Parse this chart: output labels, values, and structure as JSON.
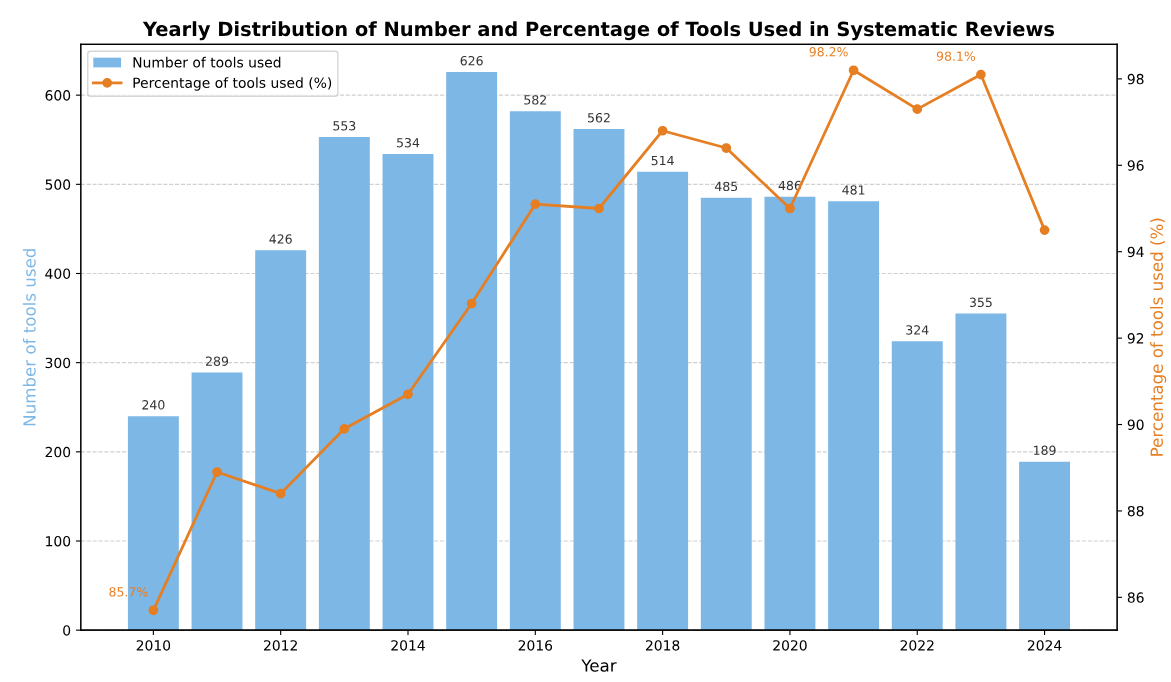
{
  "chart_data": {
    "type": "bar",
    "title": "Yearly Distribution of Number and Percentage of Tools Used in Systematic Reviews",
    "x": [
      2010,
      2011,
      2012,
      2013,
      2014,
      2015,
      2016,
      2017,
      2018,
      2019,
      2020,
      2021,
      2022,
      2023,
      2024
    ],
    "xlabel": "Year",
    "ylabel": "Number of tools used",
    "y2label": "Percentage of tools used (%)",
    "series": [
      {
        "name": "Number of tools used",
        "color": "#7cb7e6",
        "values": [
          240,
          289,
          426,
          553,
          534,
          626,
          582,
          562,
          514,
          485,
          486,
          481,
          324,
          355,
          189
        ],
        "value_labels": [
          "240",
          "289",
          "426",
          "553",
          "534",
          "626",
          "582",
          "562",
          "514",
          "485",
          "486",
          "481",
          "324",
          "355",
          "189"
        ]
      },
      {
        "name": "Percentage of tools used (%)",
        "type": "line",
        "axis": "y2",
        "color": "#e67e22",
        "values": [
          85.7,
          88.9,
          88.4,
          89.9,
          90.7,
          92.8,
          95.1,
          95.0,
          96.8,
          96.4,
          95.0,
          98.2,
          97.3,
          98.1,
          94.5
        ],
        "value_labels": [
          "85.7%",
          null,
          null,
          null,
          null,
          null,
          null,
          null,
          null,
          null,
          null,
          "98.2%",
          null,
          "98.1%",
          null
        ]
      }
    ],
    "xlim": [
      2008.86,
      2025.14
    ],
    "xticks": [
      2010,
      2012,
      2014,
      2016,
      2018,
      2020,
      2022,
      2024
    ],
    "ylim": [
      0,
      657
    ],
    "yticks": [
      0,
      100,
      200,
      300,
      400,
      500,
      600
    ],
    "y2lim": [
      85.24,
      98.8
    ],
    "y2ticks": [
      86,
      88,
      90,
      92,
      94,
      96,
      98
    ],
    "grid": "y",
    "legend": "top left",
    "marker": "circle",
    "line_style": "solid"
  }
}
